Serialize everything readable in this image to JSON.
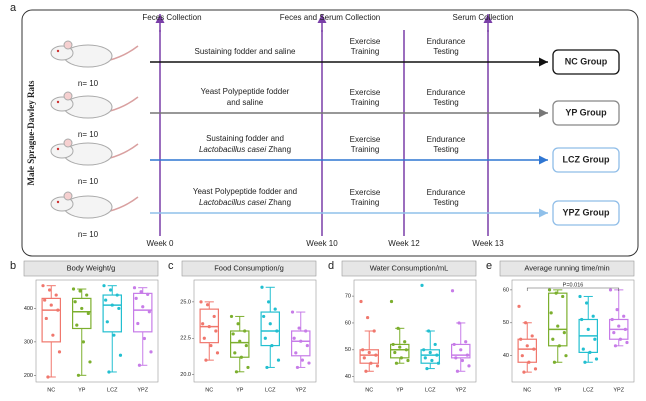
{
  "panel_a": {
    "letter": "a",
    "side_label": "Male Sprague-Dawley Rats",
    "timepoints": [
      "Feces Collection",
      "Feces and Serum Collection",
      "Serum Collection"
    ],
    "weeks": [
      "Week 0",
      "Week 10",
      "Week 12",
      "Week 13"
    ],
    "rows": [
      {
        "n": "n= 10",
        "color": "#111111",
        "group": "NC Group",
        "box_color": "#111111",
        "exercise": [
          "Exercise",
          "Training"
        ],
        "endurance": [
          "Endurance",
          "Testing"
        ],
        "treatment": [
          [
            {
              "text": "Sustaining fodder and saline",
              "italic": false
            }
          ]
        ]
      },
      {
        "n": "n= 10",
        "color": "#777777",
        "group": "YP Group",
        "box_color": "#888888",
        "exercise": [
          "Exercise",
          "Training"
        ],
        "endurance": [
          "Endurance",
          "Testing"
        ],
        "treatment": [
          [
            {
              "text": "Yeast Polypeptide fodder",
              "italic": false
            }
          ],
          [
            {
              "text": "and saline",
              "italic": false
            }
          ]
        ]
      },
      {
        "n": "n= 10",
        "color": "#2f76d2",
        "group": "LCZ Group",
        "box_color": "#8fbde8",
        "exercise": [
          "Exercise",
          "Training"
        ],
        "endurance": [
          "Endurance",
          "Testing"
        ],
        "treatment": [
          [
            {
              "text": "Sustaining fodder and",
              "italic": false
            }
          ],
          [
            {
              "text": "Lactobacillus casei",
              "italic": true
            },
            {
              "text": " Zhang",
              "italic": false
            }
          ]
        ]
      },
      {
        "n": "n= 10",
        "color": "#8fc0ea",
        "group": "YPZ Group",
        "box_color": "#8fbde8",
        "exercise": [
          "Exercise",
          "Training"
        ],
        "endurance": [
          "Endurance",
          "Testing"
        ],
        "treatment": [
          [
            {
              "text": "Yeast Polypeptide fodder and",
              "italic": false
            }
          ],
          [
            {
              "text": "Lactobacillus casei",
              "italic": true
            },
            {
              "text": " Zhang",
              "italic": false
            }
          ]
        ]
      }
    ]
  },
  "chart_data": [
    {
      "type": "box",
      "letter": "b",
      "title": "Body Weight/g",
      "categories": [
        "NC",
        "YP",
        "LCZ",
        "YPZ"
      ],
      "ylim": [
        180,
        485
      ],
      "yticks": [
        200,
        300,
        400
      ],
      "series": [
        {
          "name": "NC",
          "color": "#f0776d",
          "stats": {
            "min": 195,
            "q1": 300,
            "median": 395,
            "q3": 430,
            "max": 468
          },
          "points": [
            468,
            455,
            440,
            425,
            410,
            395,
            370,
            320,
            270,
            195
          ]
        },
        {
          "name": "YP",
          "color": "#7caf2e",
          "stats": {
            "min": 200,
            "q1": 340,
            "median": 390,
            "q3": 430,
            "max": 458
          },
          "points": [
            458,
            452,
            440,
            420,
            400,
            385,
            350,
            300,
            240,
            200
          ]
        },
        {
          "name": "LCZ",
          "color": "#22bfd0",
          "stats": {
            "min": 210,
            "q1": 330,
            "median": 410,
            "q3": 440,
            "max": 468
          },
          "points": [
            468,
            455,
            440,
            425,
            410,
            400,
            360,
            320,
            260,
            210
          ]
        },
        {
          "name": "YPZ",
          "color": "#c77ce8",
          "stats": {
            "min": 230,
            "q1": 330,
            "median": 395,
            "q3": 445,
            "max": 462
          },
          "points": [
            462,
            450,
            442,
            430,
            405,
            390,
            355,
            310,
            270,
            230
          ]
        }
      ]
    },
    {
      "type": "box",
      "letter": "c",
      "title": "Food Consumption/g",
      "categories": [
        "NC",
        "YP",
        "LCZ",
        "YPZ"
      ],
      "ylim": [
        19.5,
        26.5
      ],
      "yticks": [
        {
          "value": 20,
          "label": "20.0"
        },
        {
          "value": 22.5,
          "label": "22.5"
        },
        {
          "value": 25,
          "label": "25.0"
        }
      ],
      "series": [
        {
          "name": "NC",
          "color": "#f0776d",
          "stats": {
            "min": 21,
            "q1": 22.2,
            "median": 23.3,
            "q3": 24.5,
            "max": 25
          },
          "points": [
            25,
            24.8,
            24,
            23.5,
            23.3,
            23,
            22.5,
            22,
            21.5,
            21
          ]
        },
        {
          "name": "YP",
          "color": "#7caf2e",
          "stats": {
            "min": 20.2,
            "q1": 21.2,
            "median": 22.2,
            "q3": 23,
            "max": 24
          },
          "points": [
            24,
            23.5,
            23,
            22.8,
            22.3,
            22,
            21.5,
            21.2,
            20.5,
            20.2
          ]
        },
        {
          "name": "LCZ",
          "color": "#22bfd0",
          "stats": {
            "min": 20.5,
            "q1": 22,
            "median": 23,
            "q3": 24.3,
            "max": 26
          },
          "points": [
            26,
            25,
            24.5,
            24,
            23.5,
            23,
            22.5,
            22,
            21,
            20.5
          ]
        },
        {
          "name": "YPZ",
          "color": "#c77ce8",
          "stats": {
            "min": 20.5,
            "q1": 21.3,
            "median": 22.3,
            "q3": 23,
            "max": 24.3
          },
          "points": [
            24.3,
            23.2,
            23,
            22.5,
            22.3,
            22,
            21.5,
            21,
            20.8,
            20.5
          ]
        }
      ]
    },
    {
      "type": "box",
      "letter": "d",
      "title": "Water Consumption/mL",
      "categories": [
        "NC",
        "YP",
        "LCZ",
        "YPZ"
      ],
      "ylim": [
        38,
        76
      ],
      "yticks": [
        40,
        50,
        60,
        70
      ],
      "series": [
        {
          "name": "NC",
          "color": "#f0776d",
          "stats": {
            "min": 42,
            "q1": 45,
            "median": 48,
            "q3": 50,
            "max": 57
          },
          "points": [
            68,
            62,
            57,
            50,
            49,
            48,
            47,
            45,
            44,
            42
          ]
        },
        {
          "name": "YP",
          "color": "#7caf2e",
          "stats": {
            "min": 45,
            "q1": 47,
            "median": 50,
            "q3": 52,
            "max": 58
          },
          "points": [
            68,
            58,
            53,
            52,
            51,
            50,
            49,
            47,
            46,
            45
          ]
        },
        {
          "name": "LCZ",
          "color": "#22bfd0",
          "stats": {
            "min": 43,
            "q1": 45,
            "median": 48,
            "q3": 50,
            "max": 57
          },
          "points": [
            74,
            57,
            52,
            50,
            49,
            48,
            47,
            46,
            45,
            43
          ]
        },
        {
          "name": "YPZ",
          "color": "#c77ce8",
          "stats": {
            "min": 42,
            "q1": 47,
            "median": 48,
            "q3": 52,
            "max": 60
          },
          "points": [
            72,
            60,
            53,
            52,
            50,
            48,
            47,
            46,
            44,
            42
          ]
        }
      ]
    },
    {
      "type": "box",
      "letter": "e",
      "title": "Average running time/min",
      "categories": [
        "NC",
        "YP",
        "LCZ",
        "YPZ"
      ],
      "ylim": [
        32,
        63
      ],
      "yticks": [
        40,
        50,
        60
      ],
      "annotation": "P=0.016",
      "series": [
        {
          "name": "NC",
          "color": "#f0776d",
          "stats": {
            "min": 35,
            "q1": 38,
            "median": 42,
            "q3": 45,
            "max": 50
          },
          "points": [
            55,
            50,
            46,
            45,
            43,
            42,
            40,
            38,
            36,
            35
          ]
        },
        {
          "name": "YP",
          "color": "#7caf2e",
          "stats": {
            "min": 38,
            "q1": 43,
            "median": 48,
            "q3": 59,
            "max": 60
          },
          "points": [
            60,
            59,
            58,
            53,
            49,
            47,
            45,
            43,
            40,
            38
          ]
        },
        {
          "name": "LCZ",
          "color": "#22bfd0",
          "stats": {
            "min": 38,
            "q1": 41,
            "median": 46,
            "q3": 51,
            "max": 58
          },
          "points": [
            58,
            56,
            52,
            51,
            48,
            45,
            42,
            41,
            39,
            38
          ]
        },
        {
          "name": "YPZ",
          "color": "#c77ce8",
          "stats": {
            "min": 43,
            "q1": 45,
            "median": 48,
            "q3": 51,
            "max": 60
          },
          "points": [
            60,
            54,
            52,
            51,
            49,
            48,
            47,
            45,
            44,
            43
          ]
        }
      ]
    }
  ]
}
